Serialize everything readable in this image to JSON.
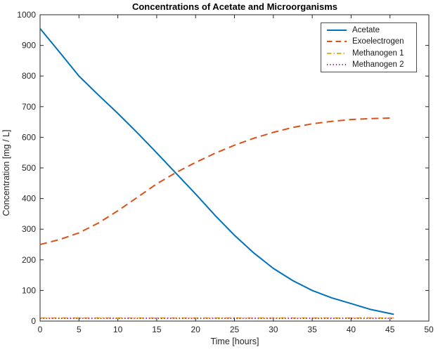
{
  "chart_data": {
    "type": "line",
    "title": "Concentrations of Acetate and Microorganisms",
    "xlabel": "Time [hours]",
    "ylabel": "Concentration [mg / L]",
    "xlim": [
      0,
      50
    ],
    "ylim": [
      0,
      1000
    ],
    "xticks": [
      0,
      5,
      10,
      15,
      20,
      25,
      30,
      35,
      40,
      45,
      50
    ],
    "yticks": [
      0,
      100,
      200,
      300,
      400,
      500,
      600,
      700,
      800,
      900,
      1000
    ],
    "grid": false,
    "legend_position": "top-right",
    "axis_color": "#262626",
    "x": [
      0,
      2.5,
      5,
      7.5,
      10,
      12.5,
      15,
      17.5,
      20,
      22.5,
      25,
      27.5,
      30,
      32.5,
      35,
      37.5,
      40,
      42.5,
      45.5
    ],
    "series": [
      {
        "name": "Acetate",
        "color": "#0072BD",
        "line_style": "solid",
        "values": [
          955,
          878,
          800,
          738,
          678,
          615,
          549,
          482,
          415,
          345,
          280,
          222,
          172,
          132,
          100,
          76,
          57,
          38,
          22
        ]
      },
      {
        "name": "Exoelectrogen",
        "color": "#D95319",
        "line_style": "dashed",
        "values": [
          250,
          266,
          288,
          320,
          360,
          404,
          448,
          485,
          518,
          548,
          574,
          597,
          616,
          632,
          644,
          652,
          658,
          661,
          663
        ]
      },
      {
        "name": "Methanogen 1",
        "color": "#EDB120",
        "line_style": "dash-dot",
        "values": [
          10,
          10,
          10,
          10,
          10,
          10,
          10,
          10,
          10,
          10,
          10,
          10,
          10,
          10,
          10,
          10,
          10,
          10,
          10
        ]
      },
      {
        "name": "Methanogen 2",
        "color": "#7E2F8E",
        "line_style": "dotted",
        "values": [
          9,
          9,
          9,
          9,
          9,
          9,
          9,
          9,
          9,
          9,
          9,
          9,
          9,
          9,
          9,
          9,
          9,
          9,
          9
        ]
      }
    ]
  }
}
